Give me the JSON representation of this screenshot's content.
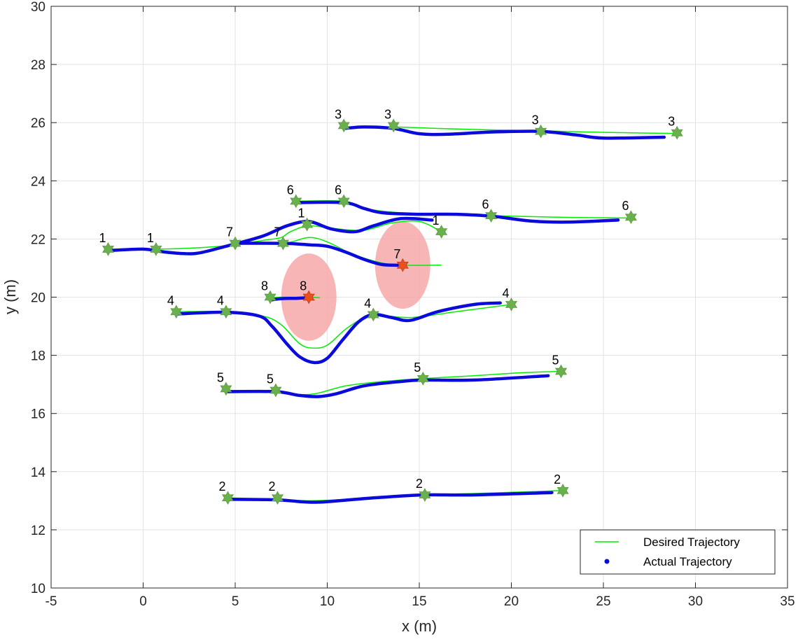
{
  "chart_data": {
    "type": "line",
    "title": "",
    "xlabel": "x (m)",
    "ylabel": "y (m)",
    "xlim": [
      -5,
      35
    ],
    "ylim": [
      10,
      30
    ],
    "xticks": [
      -5,
      0,
      5,
      10,
      15,
      20,
      25,
      30,
      35
    ],
    "yticks": [
      10,
      12,
      14,
      16,
      18,
      20,
      22,
      24,
      26,
      28,
      30
    ],
    "grid": true,
    "legend": {
      "placement": "bottom-right",
      "entries": [
        "Desired Trajectory",
        "Actual Trajectory"
      ]
    },
    "colors": {
      "desired": "#00ee00",
      "actual": "#0a0adc",
      "marker": "#6ab04c",
      "obstacle_marker": "#e8501e",
      "obstacle": "#f7a8a8",
      "grid": "#e3e3e3",
      "axis": "#262626"
    },
    "series": [
      {
        "name": "Desired Trajectory",
        "agents": [
          {
            "label": "1",
            "points": [
              [
                -2,
                21.65
              ],
              [
                0.8,
                21.65
              ],
              [
                3,
                21.7
              ],
              [
                5,
                21.8
              ],
              [
                6.5,
                21.95
              ],
              [
                7.5,
                22.05
              ],
              [
                8,
                22.25
              ],
              [
                9,
                22.45
              ],
              [
                10.5,
                22.35
              ],
              [
                12,
                22.3
              ],
              [
                13.5,
                22.55
              ],
              [
                15,
                22.6
              ],
              [
                16.2,
                22.25
              ]
            ]
          },
          {
            "label": "2",
            "points": [
              [
                4.6,
                13.1
              ],
              [
                7.3,
                13.05
              ],
              [
                9,
                13.0
              ],
              [
                11,
                13.05
              ],
              [
                13,
                13.15
              ],
              [
                15.3,
                13.2
              ],
              [
                18,
                13.25
              ],
              [
                20.5,
                13.3
              ],
              [
                22.8,
                13.35
              ]
            ]
          },
          {
            "label": "3",
            "points": [
              [
                10.9,
                25.85
              ],
              [
                13.6,
                25.85
              ],
              [
                16,
                25.8
              ],
              [
                19,
                25.75
              ],
              [
                21.6,
                25.72
              ],
              [
                24,
                25.68
              ],
              [
                26.5,
                25.65
              ],
              [
                29,
                25.63
              ]
            ]
          },
          {
            "label": "4",
            "points": [
              [
                1.8,
                19.5
              ],
              [
                4.5,
                19.5
              ],
              [
                6.5,
                19.35
              ],
              [
                7.5,
                19.05
              ],
              [
                8.5,
                18.4
              ],
              [
                9.2,
                18.25
              ],
              [
                10,
                18.35
              ],
              [
                11,
                18.9
              ],
              [
                12,
                19.3
              ],
              [
                12.5,
                19.4
              ],
              [
                14.5,
                19.3
              ],
              [
                17,
                19.5
              ],
              [
                20,
                19.75
              ]
            ]
          },
          {
            "label": "5",
            "points": [
              [
                4.5,
                16.8
              ],
              [
                7.2,
                16.75
              ],
              [
                8.5,
                16.65
              ],
              [
                9.5,
                16.7
              ],
              [
                11,
                16.95
              ],
              [
                13,
                17.1
              ],
              [
                15.2,
                17.2
              ],
              [
                18,
                17.3
              ],
              [
                20.5,
                17.4
              ],
              [
                22.7,
                17.45
              ]
            ]
          },
          {
            "label": "6",
            "points": [
              [
                8.3,
                23.3
              ],
              [
                10.9,
                23.3
              ],
              [
                12,
                23.05
              ],
              [
                14,
                22.9
              ],
              [
                16,
                22.85
              ],
              [
                19,
                22.8
              ],
              [
                22.5,
                22.75
              ],
              [
                26.5,
                22.72
              ]
            ]
          },
          {
            "label": "7",
            "points": [
              [
                5,
                21.85
              ],
              [
                7.6,
                21.85
              ],
              [
                9,
                22.05
              ],
              [
                10,
                21.9
              ],
              [
                11.3,
                21.5
              ],
              [
                12.8,
                21.2
              ],
              [
                14.1,
                21.1
              ],
              [
                16.2,
                21.1
              ]
            ]
          },
          {
            "label": "8",
            "points": [
              [
                6.9,
                19.98
              ],
              [
                7.6,
                20.0
              ],
              [
                8.3,
                20.0
              ],
              [
                9,
                20.0
              ],
              [
                9.6,
                19.98
              ]
            ]
          }
        ]
      },
      {
        "name": "Actual Trajectory",
        "agents": [
          {
            "label": "1",
            "points": [
              [
                -1.9,
                21.6
              ],
              [
                0,
                21.65
              ],
              [
                1.2,
                21.55
              ],
              [
                2.8,
                21.5
              ],
              [
                4.5,
                21.75
              ],
              [
                6.5,
                22.1
              ],
              [
                7.8,
                22.45
              ],
              [
                9,
                22.6
              ],
              [
                10.2,
                22.35
              ],
              [
                11.5,
                22.25
              ],
              [
                12.5,
                22.45
              ],
              [
                14,
                22.7
              ],
              [
                15.7,
                22.65
              ]
            ]
          },
          {
            "label": "2",
            "points": [
              [
                4.6,
                13.05
              ],
              [
                7.3,
                13.03
              ],
              [
                8.5,
                12.97
              ],
              [
                9.5,
                12.95
              ],
              [
                11,
                13.02
              ],
              [
                13,
                13.12
              ],
              [
                15.3,
                13.2
              ],
              [
                18,
                13.2
              ],
              [
                22.2,
                13.28
              ]
            ]
          },
          {
            "label": "3",
            "points": [
              [
                10.9,
                25.8
              ],
              [
                12,
                25.85
              ],
              [
                13.6,
                25.8
              ],
              [
                15,
                25.62
              ],
              [
                16.5,
                25.6
              ],
              [
                19,
                25.68
              ],
              [
                21.6,
                25.7
              ],
              [
                23.5,
                25.58
              ],
              [
                25,
                25.47
              ],
              [
                28.3,
                25.5
              ]
            ]
          },
          {
            "label": "4",
            "points": [
              [
                1.8,
                19.42
              ],
              [
                4.5,
                19.48
              ],
              [
                6.3,
                19.35
              ],
              [
                7,
                19.0
              ],
              [
                7.8,
                18.4
              ],
              [
                8.5,
                17.95
              ],
              [
                9.3,
                17.75
              ],
              [
                10,
                17.9
              ],
              [
                10.8,
                18.5
              ],
              [
                11.7,
                19.15
              ],
              [
                12.5,
                19.4
              ],
              [
                13.5,
                19.3
              ],
              [
                14.5,
                19.2
              ],
              [
                16,
                19.5
              ],
              [
                18,
                19.75
              ],
              [
                19.4,
                19.8
              ]
            ]
          },
          {
            "label": "5",
            "points": [
              [
                4.5,
                16.75
              ],
              [
                7.2,
                16.75
              ],
              [
                8.5,
                16.62
              ],
              [
                9.5,
                16.58
              ],
              [
                10.5,
                16.68
              ],
              [
                12,
                16.95
              ],
              [
                14,
                17.1
              ],
              [
                15.2,
                17.15
              ],
              [
                18,
                17.15
              ],
              [
                22,
                17.3
              ]
            ]
          },
          {
            "label": "6",
            "points": [
              [
                8.3,
                23.25
              ],
              [
                10.9,
                23.25
              ],
              [
                12,
                23.05
              ],
              [
                13,
                22.9
              ],
              [
                15,
                22.85
              ],
              [
                17,
                22.85
              ],
              [
                19,
                22.78
              ],
              [
                21,
                22.62
              ],
              [
                23,
                22.58
              ],
              [
                25.8,
                22.65
              ]
            ]
          },
          {
            "label": "7",
            "points": [
              [
                5,
                21.85
              ],
              [
                7.6,
                21.85
              ],
              [
                9,
                21.8
              ],
              [
                10,
                21.75
              ],
              [
                11,
                21.55
              ],
              [
                12,
                21.3
              ],
              [
                13,
                21.12
              ],
              [
                14.1,
                21.1
              ]
            ]
          },
          {
            "label": "8",
            "points": [
              [
                6.9,
                19.9
              ],
              [
                7.5,
                19.95
              ],
              [
                8.3,
                19.96
              ],
              [
                9,
                19.98
              ]
            ]
          }
        ]
      }
    ],
    "markers": [
      {
        "label": "1",
        "x": -1.9,
        "y": 21.65
      },
      {
        "label": "1",
        "x": 0.7,
        "y": 21.65
      },
      {
        "label": "1",
        "x": 8.9,
        "y": 22.5
      },
      {
        "label": "1",
        "x": 16.2,
        "y": 22.25
      },
      {
        "label": "2",
        "x": 4.6,
        "y": 13.1
      },
      {
        "label": "2",
        "x": 7.3,
        "y": 13.1
      },
      {
        "label": "2",
        "x": 15.3,
        "y": 13.2
      },
      {
        "label": "2",
        "x": 22.8,
        "y": 13.35
      },
      {
        "label": "3",
        "x": 10.9,
        "y": 25.9
      },
      {
        "label": "3",
        "x": 13.6,
        "y": 25.9
      },
      {
        "label": "3",
        "x": 21.6,
        "y": 25.7
      },
      {
        "label": "3",
        "x": 29,
        "y": 25.65
      },
      {
        "label": "4",
        "x": 1.8,
        "y": 19.5
      },
      {
        "label": "4",
        "x": 4.5,
        "y": 19.5
      },
      {
        "label": "4",
        "x": 12.5,
        "y": 19.4
      },
      {
        "label": "4",
        "x": 20,
        "y": 19.75
      },
      {
        "label": "5",
        "x": 4.5,
        "y": 16.85
      },
      {
        "label": "5",
        "x": 7.2,
        "y": 16.8
      },
      {
        "label": "5",
        "x": 15.2,
        "y": 17.2
      },
      {
        "label": "5",
        "x": 22.7,
        "y": 17.45
      },
      {
        "label": "6",
        "x": 8.3,
        "y": 23.3
      },
      {
        "label": "6",
        "x": 10.9,
        "y": 23.3
      },
      {
        "label": "6",
        "x": 18.9,
        "y": 22.8
      },
      {
        "label": "6",
        "x": 26.5,
        "y": 22.75
      },
      {
        "label": "7",
        "x": 5.0,
        "y": 21.85
      },
      {
        "label": "7",
        "x": 7.6,
        "y": 21.85
      },
      {
        "label": "7",
        "x": 14.1,
        "y": 21.1,
        "obstacle": true
      },
      {
        "label": "8",
        "x": 6.9,
        "y": 20.0
      },
      {
        "label": "8",
        "x": 9.0,
        "y": 20.0,
        "obstacle": true
      }
    ],
    "obstacles": [
      {
        "label": "8",
        "cx": 9.0,
        "cy": 20.0,
        "rx": 1.5,
        "ry": 1.5
      },
      {
        "label": "7",
        "cx": 14.1,
        "cy": 21.1,
        "rx": 1.5,
        "ry": 1.5
      }
    ]
  }
}
